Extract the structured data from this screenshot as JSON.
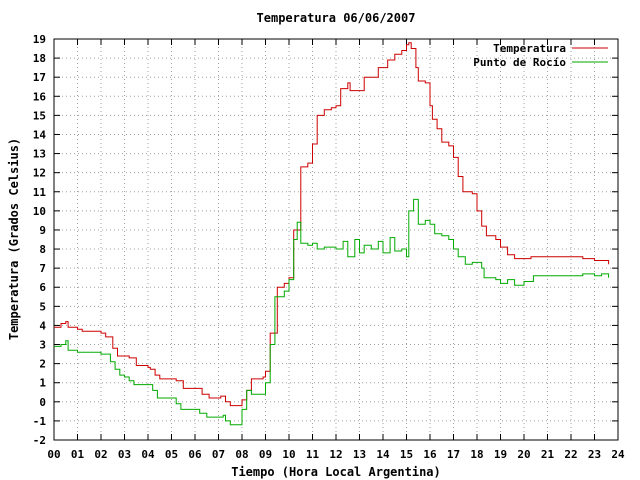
{
  "chart_data": {
    "type": "line",
    "title": "Temperatura 06/06/2007",
    "xlabel": "Tiempo (Hora Local Argentina)",
    "ylabel": "Temperatura (Grados Celsius)",
    "xlim": [
      0,
      24
    ],
    "ylim": [
      -2,
      19
    ],
    "grid": true,
    "legend_position": "top-right",
    "x_tick_labels": [
      "00",
      "01",
      "02",
      "03",
      "04",
      "05",
      "06",
      "07",
      "08",
      "09",
      "10",
      "11",
      "12",
      "13",
      "14",
      "15",
      "16",
      "17",
      "18",
      "19",
      "20",
      "21",
      "22",
      "23",
      "24"
    ],
    "y_ticks": [
      -2,
      -1,
      0,
      1,
      2,
      3,
      4,
      5,
      6,
      7,
      8,
      9,
      10,
      11,
      12,
      13,
      14,
      15,
      16,
      17,
      18,
      19
    ],
    "series": [
      {
        "name": "Temperatura",
        "color": "#cc0000",
        "points": [
          [
            0,
            3.9
          ],
          [
            0.3,
            4.1
          ],
          [
            0.5,
            4.2
          ],
          [
            0.6,
            3.9
          ],
          [
            1.0,
            3.8
          ],
          [
            1.2,
            3.7
          ],
          [
            1.5,
            3.7
          ],
          [
            2.0,
            3.6
          ],
          [
            2.2,
            3.4
          ],
          [
            2.5,
            2.8
          ],
          [
            2.7,
            2.4
          ],
          [
            3.0,
            2.4
          ],
          [
            3.2,
            2.3
          ],
          [
            3.5,
            1.9
          ],
          [
            4.0,
            1.8
          ],
          [
            4.1,
            1.7
          ],
          [
            4.3,
            1.4
          ],
          [
            4.5,
            1.2
          ],
          [
            5.0,
            1.2
          ],
          [
            5.2,
            1.1
          ],
          [
            5.5,
            0.7
          ],
          [
            6.0,
            0.7
          ],
          [
            6.3,
            0.4
          ],
          [
            6.6,
            0.2
          ],
          [
            7.0,
            0.2
          ],
          [
            7.1,
            0.3
          ],
          [
            7.3,
            0.0
          ],
          [
            7.5,
            -0.2
          ],
          [
            7.8,
            -0.2
          ],
          [
            8.0,
            0.1
          ],
          [
            8.2,
            0.6
          ],
          [
            8.4,
            1.2
          ],
          [
            8.7,
            1.2
          ],
          [
            8.9,
            1.3
          ],
          [
            9.0,
            1.6
          ],
          [
            9.2,
            3.6
          ],
          [
            9.5,
            6.0
          ],
          [
            9.8,
            6.2
          ],
          [
            10.0,
            6.5
          ],
          [
            10.2,
            9.0
          ],
          [
            10.5,
            12.3
          ],
          [
            10.8,
            12.5
          ],
          [
            11.0,
            13.5
          ],
          [
            11.2,
            15.0
          ],
          [
            11.5,
            15.3
          ],
          [
            11.8,
            15.4
          ],
          [
            12.0,
            15.5
          ],
          [
            12.2,
            16.4
          ],
          [
            12.5,
            16.7
          ],
          [
            12.6,
            16.3
          ],
          [
            13.0,
            16.3
          ],
          [
            13.2,
            17.0
          ],
          [
            13.5,
            17.0
          ],
          [
            13.8,
            17.5
          ],
          [
            14.0,
            17.5
          ],
          [
            14.2,
            17.9
          ],
          [
            14.5,
            18.2
          ],
          [
            14.8,
            18.4
          ],
          [
            15.0,
            18.7
          ],
          [
            15.1,
            18.8
          ],
          [
            15.2,
            18.5
          ],
          [
            15.4,
            17.5
          ],
          [
            15.5,
            16.8
          ],
          [
            15.8,
            16.7
          ],
          [
            16.0,
            15.5
          ],
          [
            16.1,
            14.8
          ],
          [
            16.3,
            14.3
          ],
          [
            16.5,
            13.6
          ],
          [
            16.8,
            13.4
          ],
          [
            17.0,
            12.8
          ],
          [
            17.2,
            11.8
          ],
          [
            17.4,
            11.0
          ],
          [
            17.8,
            10.9
          ],
          [
            18.0,
            10.0
          ],
          [
            18.2,
            9.2
          ],
          [
            18.4,
            8.7
          ],
          [
            18.8,
            8.5
          ],
          [
            19.0,
            8.1
          ],
          [
            19.3,
            7.7
          ],
          [
            19.6,
            7.5
          ],
          [
            20.0,
            7.5
          ],
          [
            20.3,
            7.6
          ],
          [
            21.0,
            7.6
          ],
          [
            22.0,
            7.6
          ],
          [
            22.5,
            7.5
          ],
          [
            23.0,
            7.4
          ],
          [
            23.4,
            7.4
          ],
          [
            23.6,
            7.2
          ]
        ]
      },
      {
        "name": "Punto de Rocío",
        "color": "#00aa00",
        "points": [
          [
            0,
            2.9
          ],
          [
            0.3,
            3.0
          ],
          [
            0.5,
            3.2
          ],
          [
            0.6,
            2.7
          ],
          [
            1.0,
            2.6
          ],
          [
            1.5,
            2.6
          ],
          [
            2.0,
            2.5
          ],
          [
            2.2,
            2.5
          ],
          [
            2.4,
            2.1
          ],
          [
            2.6,
            1.7
          ],
          [
            2.8,
            1.4
          ],
          [
            3.0,
            1.3
          ],
          [
            3.2,
            1.1
          ],
          [
            3.4,
            0.9
          ],
          [
            4.0,
            0.9
          ],
          [
            4.2,
            0.6
          ],
          [
            4.4,
            0.2
          ],
          [
            4.6,
            0.2
          ],
          [
            5.0,
            0.2
          ],
          [
            5.2,
            -0.1
          ],
          [
            5.4,
            -0.4
          ],
          [
            6.0,
            -0.4
          ],
          [
            6.2,
            -0.6
          ],
          [
            6.5,
            -0.8
          ],
          [
            7.0,
            -0.8
          ],
          [
            7.2,
            -0.7
          ],
          [
            7.3,
            -1.0
          ],
          [
            7.5,
            -1.2
          ],
          [
            7.8,
            -1.2
          ],
          [
            8.0,
            -0.4
          ],
          [
            8.2,
            0.6
          ],
          [
            8.4,
            0.4
          ],
          [
            8.9,
            0.4
          ],
          [
            9.0,
            1.0
          ],
          [
            9.2,
            3.0
          ],
          [
            9.4,
            5.5
          ],
          [
            9.8,
            5.8
          ],
          [
            10.0,
            6.4
          ],
          [
            10.2,
            8.5
          ],
          [
            10.35,
            9.4
          ],
          [
            10.5,
            8.3
          ],
          [
            10.8,
            8.2
          ],
          [
            11.0,
            8.3
          ],
          [
            11.2,
            8.0
          ],
          [
            11.5,
            8.1
          ],
          [
            12.0,
            8.0
          ],
          [
            12.3,
            8.4
          ],
          [
            12.5,
            7.6
          ],
          [
            12.8,
            8.5
          ],
          [
            13.0,
            7.8
          ],
          [
            13.2,
            8.2
          ],
          [
            13.5,
            8.0
          ],
          [
            13.8,
            8.4
          ],
          [
            14.0,
            7.8
          ],
          [
            14.3,
            8.6
          ],
          [
            14.5,
            7.9
          ],
          [
            14.8,
            8.0
          ],
          [
            15.0,
            7.6
          ],
          [
            15.1,
            10.0
          ],
          [
            15.3,
            10.6
          ],
          [
            15.5,
            9.3
          ],
          [
            15.8,
            9.5
          ],
          [
            16.0,
            9.3
          ],
          [
            16.2,
            8.8
          ],
          [
            16.5,
            8.7
          ],
          [
            16.8,
            8.5
          ],
          [
            17.0,
            8.0
          ],
          [
            17.2,
            7.6
          ],
          [
            17.5,
            7.2
          ],
          [
            17.8,
            7.3
          ],
          [
            18.0,
            7.3
          ],
          [
            18.2,
            7.0
          ],
          [
            18.3,
            6.5
          ],
          [
            18.8,
            6.4
          ],
          [
            19.0,
            6.2
          ],
          [
            19.3,
            6.4
          ],
          [
            19.6,
            6.1
          ],
          [
            20.0,
            6.3
          ],
          [
            20.2,
            6.3
          ],
          [
            20.4,
            6.6
          ],
          [
            21.0,
            6.6
          ],
          [
            22.0,
            6.6
          ],
          [
            22.5,
            6.7
          ],
          [
            23.0,
            6.6
          ],
          [
            23.3,
            6.7
          ],
          [
            23.6,
            6.5
          ]
        ]
      }
    ]
  }
}
